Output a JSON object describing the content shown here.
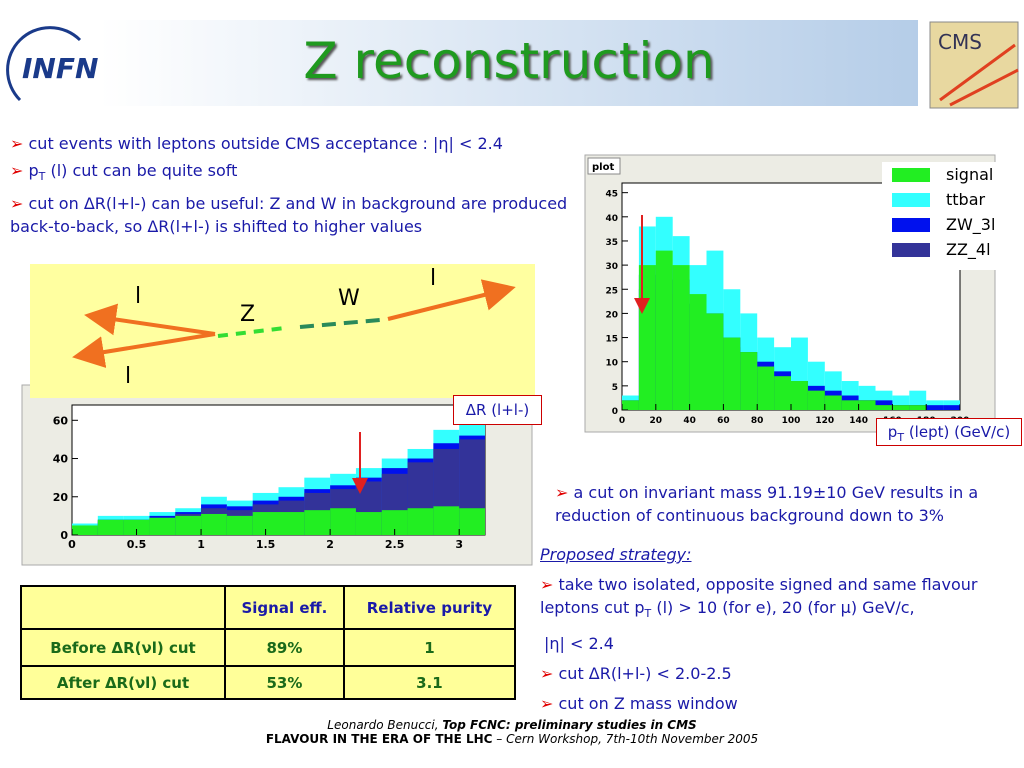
{
  "header": {
    "logo_left": "INFN",
    "title": "Z reconstruction",
    "logo_right": "CMS"
  },
  "marker": "➢",
  "bullets": [
    [
      {
        "text": "cut events with leptons outside CMS acceptance : |η| < 2.4"
      }
    ],
    [
      {
        "text": "p"
      },
      {
        "text": "T",
        "sub": true
      },
      {
        "text": " (l) cut can be quite soft"
      }
    ],
    [
      {
        "text": "cut on ΔR(l+l-) can be useful: Z and W in background are produced back-to-back, so ΔR(l+l-) is shifted to higher values"
      }
    ]
  ],
  "diagram": {
    "labels": [
      "l",
      "Z",
      "W",
      "l",
      "l"
    ]
  },
  "chart_data": [
    {
      "type": "histogram",
      "title": "plot",
      "xlabel": [
        {
          "text": "p"
        },
        {
          "text": "T",
          "sub": true
        },
        {
          "text": " (lept) (GeV/c)"
        }
      ],
      "bins": [
        0,
        10,
        20,
        30,
        40,
        50,
        60,
        70,
        80,
        90,
        100,
        110,
        120,
        130,
        140,
        150,
        160,
        170,
        180,
        190,
        200
      ],
      "series": [
        {
          "name": "ttbar",
          "color": "#33ffff",
          "values": [
            3,
            38,
            40,
            36,
            30,
            33,
            25,
            20,
            15,
            13,
            15,
            10,
            8,
            6,
            5,
            4,
            3,
            4,
            2,
            2
          ]
        },
        {
          "name": "ZW_3l",
          "color": "#0011ee",
          "values": [
            2,
            28,
            30,
            27,
            22,
            20,
            15,
            12,
            10,
            8,
            6,
            5,
            4,
            3,
            2,
            2,
            1,
            1,
            1,
            1
          ]
        },
        {
          "name": "ZZ_4l",
          "color": "#333399",
          "values": [
            1,
            25,
            27,
            24,
            20,
            17,
            13,
            10,
            8,
            6,
            5,
            4,
            3,
            2,
            2,
            1,
            1,
            1,
            0,
            0
          ]
        },
        {
          "name": "signal",
          "color": "#22ee22",
          "values": [
            2,
            30,
            33,
            30,
            24,
            20,
            15,
            12,
            9,
            7,
            6,
            4,
            3,
            2,
            2,
            1,
            1,
            1,
            0,
            0
          ]
        }
      ],
      "legend_order": [
        3,
        0,
        1,
        2
      ],
      "xlim": [
        0,
        200
      ],
      "xticks": [
        0,
        20,
        40,
        60,
        80,
        100,
        120,
        140,
        160,
        180,
        200
      ],
      "ylim": [
        0,
        47
      ],
      "yticks": [
        0,
        5,
        10,
        15,
        20,
        25,
        30,
        35,
        40,
        45
      ]
    },
    {
      "type": "histogram",
      "xlabel": "ΔR (l+l-)",
      "bins": [
        0,
        0.2,
        0.4,
        0.6,
        0.8,
        1,
        1.2,
        1.4,
        1.6,
        1.8,
        2,
        2.2,
        2.4,
        2.6,
        2.8,
        3,
        3.2
      ],
      "series": [
        {
          "color": "#33ffff",
          "values": [
            6,
            10,
            10,
            12,
            14,
            20,
            18,
            22,
            25,
            30,
            32,
            35,
            40,
            45,
            55,
            60
          ]
        },
        {
          "color": "#0011ee",
          "values": [
            4,
            8,
            8,
            10,
            12,
            16,
            15,
            18,
            20,
            24,
            26,
            30,
            35,
            40,
            48,
            52
          ]
        },
        {
          "color": "#333399",
          "values": [
            3,
            7,
            7,
            9,
            11,
            14,
            13,
            16,
            18,
            22,
            24,
            28,
            32,
            38,
            45,
            50
          ]
        },
        {
          "color": "#22ee22",
          "values": [
            5,
            8,
            8,
            9,
            10,
            11,
            10,
            12,
            12,
            13,
            14,
            12,
            13,
            14,
            15,
            14
          ]
        }
      ],
      "xlim": [
        0,
        3.2
      ],
      "xticks": [
        0,
        0.5,
        1,
        1.5,
        2,
        2.5,
        3
      ],
      "ylim": [
        0,
        68
      ],
      "yticks": [
        0,
        20,
        40,
        60
      ]
    }
  ],
  "strategy": {
    "intro": [
      {
        "text": "a cut on invariant mass 91.19±10 GeV results in a reduction of continuous background down to 3%"
      }
    ],
    "heading": "Proposed strategy:",
    "items": [
      {
        "marker": true,
        "runs": [
          {
            "text": "take two isolated, opposite signed and same flavour leptons cut p"
          },
          {
            "text": "T",
            "sub": true
          },
          {
            "text": " (l) > 10 (for e), 20 (for μ) GeV/c,"
          }
        ]
      },
      {
        "marker": false,
        "runs": [
          {
            "text": "|η| < 2.4"
          }
        ]
      },
      {
        "marker": true,
        "runs": [
          {
            "text": "cut ΔR(l+l-) < 2.0-2.5"
          }
        ]
      },
      {
        "marker": true,
        "runs": [
          {
            "text": "cut on Z mass window"
          }
        ]
      }
    ]
  },
  "table": {
    "header": [
      "Signal eff.",
      "Relative purity"
    ],
    "rows": [
      [
        "Before ΔR(νl) cut",
        "89%",
        "1"
      ],
      [
        "After ΔR(νl) cut",
        "53%",
        "3.1"
      ]
    ]
  },
  "footer": [
    [
      {
        "text": "Leonardo Benucci, ",
        "italic": true
      },
      {
        "text": "Top FCNC: preliminary studies in CMS",
        "bold": true,
        "italic": true
      }
    ],
    [
      {
        "text": "FLAVOUR IN THE ERA OF THE LHC",
        "bold": true
      },
      {
        "text": " – Cern Workshop, 7th-10th November 2005",
        "italic": true
      }
    ]
  ]
}
